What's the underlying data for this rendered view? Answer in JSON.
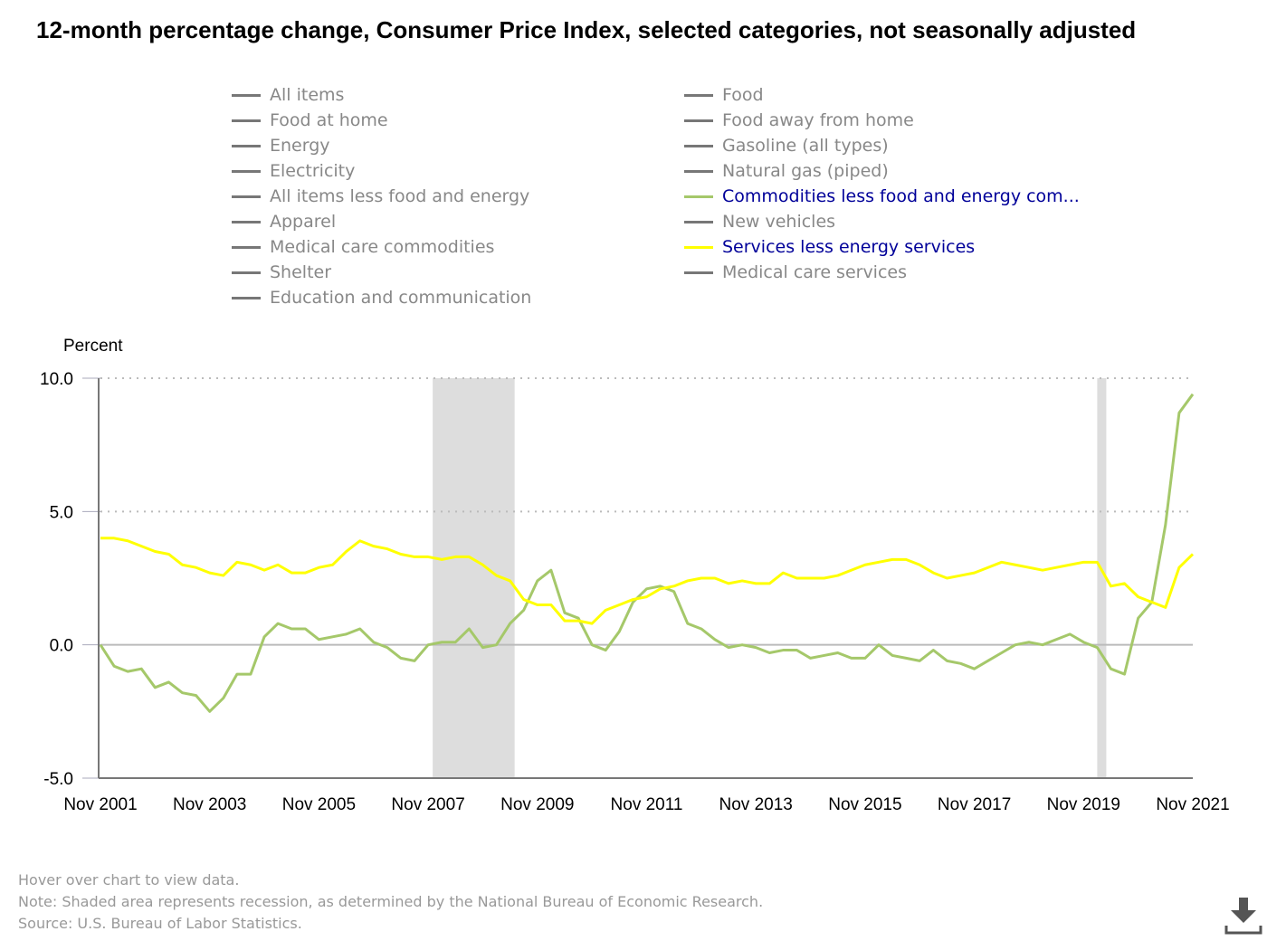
{
  "title": "12-month percentage change, Consumer Price Index, selected categories, not seasonally adjusted",
  "legend": [
    {
      "label": "All items",
      "active": false
    },
    {
      "label": "Food at home",
      "active": false
    },
    {
      "label": "Energy",
      "active": false
    },
    {
      "label": "Electricity",
      "active": false
    },
    {
      "label": "All items less food and energy",
      "active": false
    },
    {
      "label": "Apparel",
      "active": false
    },
    {
      "label": "Medical care commodities",
      "active": false
    },
    {
      "label": "Shelter",
      "active": false
    },
    {
      "label": "Education and communication",
      "active": false
    },
    {
      "label": "Food",
      "active": false
    },
    {
      "label": "Food away from home",
      "active": false
    },
    {
      "label": "Gasoline (all types)",
      "active": false
    },
    {
      "label": "Natural gas (piped)",
      "active": false
    },
    {
      "label": "Commodities less food and energy com...",
      "active": true,
      "color": "#a5c86a"
    },
    {
      "label": "New vehicles",
      "active": false
    },
    {
      "label": "Services less energy services",
      "active": true,
      "color": "#ffff00"
    },
    {
      "label": "Medical care services",
      "active": false
    }
  ],
  "chart_data": {
    "type": "line",
    "title": "12-month percentage change, Consumer Price Index, selected categories, not seasonally adjusted",
    "ylabel": "Percent",
    "xlabel": "",
    "ylim": [
      -5,
      10
    ],
    "yticks": [
      "10.0",
      "5.0",
      "0.0",
      "-5.0"
    ],
    "ytick_values": [
      10,
      5,
      0,
      -5
    ],
    "xticks": [
      "Nov 2001",
      "Nov 2003",
      "Nov 2005",
      "Nov 2007",
      "Nov 2009",
      "Nov 2011",
      "Nov 2013",
      "Nov 2015",
      "Nov 2017",
      "Nov 2019",
      "Nov 2021"
    ],
    "x_start": "2001-11",
    "x_months_total": 240,
    "step_months": 3,
    "grid": "horizontal dotted",
    "recessions": [
      {
        "start": "2007-12",
        "end": "2009-06"
      },
      {
        "start": "2020-02",
        "end": "2020-04"
      }
    ],
    "series": [
      {
        "name": "Commodities less food and energy commodities",
        "color": "#a5c86a",
        "values": [
          0.0,
          -0.8,
          -1.0,
          -0.9,
          -1.6,
          -1.4,
          -1.8,
          -1.9,
          -2.5,
          -2.0,
          -1.1,
          -1.1,
          0.3,
          0.8,
          0.6,
          0.6,
          0.2,
          0.3,
          0.4,
          0.6,
          0.1,
          -0.1,
          -0.5,
          -0.6,
          0.0,
          0.1,
          0.1,
          0.6,
          -0.1,
          0.0,
          0.8,
          1.3,
          2.4,
          2.8,
          1.2,
          1.0,
          0.0,
          -0.2,
          0.5,
          1.6,
          2.1,
          2.2,
          2.0,
          0.8,
          0.6,
          0.2,
          -0.1,
          0.0,
          -0.1,
          -0.3,
          -0.2,
          -0.2,
          -0.5,
          -0.4,
          -0.3,
          -0.5,
          -0.5,
          0.0,
          -0.4,
          -0.5,
          -0.6,
          -0.2,
          -0.6,
          -0.7,
          -0.9,
          -0.6,
          -0.3,
          0.0,
          0.1,
          0.0,
          0.2,
          0.4,
          0.1,
          -0.1,
          -0.9,
          -1.1,
          1.0,
          1.6,
          4.5,
          8.7,
          9.4
        ]
      },
      {
        "name": "Services less energy services",
        "color": "#ffff00",
        "values": [
          4.0,
          4.0,
          3.9,
          3.7,
          3.5,
          3.4,
          3.0,
          2.9,
          2.7,
          2.6,
          3.1,
          3.0,
          2.8,
          3.0,
          2.7,
          2.7,
          2.9,
          3.0,
          3.5,
          3.9,
          3.7,
          3.6,
          3.4,
          3.3,
          3.3,
          3.2,
          3.3,
          3.3,
          3.0,
          2.6,
          2.4,
          1.7,
          1.5,
          1.5,
          0.9,
          0.9,
          0.8,
          1.3,
          1.5,
          1.7,
          1.8,
          2.1,
          2.2,
          2.4,
          2.5,
          2.5,
          2.3,
          2.4,
          2.3,
          2.3,
          2.7,
          2.5,
          2.5,
          2.5,
          2.6,
          2.8,
          3.0,
          3.1,
          3.2,
          3.2,
          3.0,
          2.7,
          2.5,
          2.6,
          2.7,
          2.9,
          3.1,
          3.0,
          2.9,
          2.8,
          2.9,
          3.0,
          3.1,
          3.1,
          2.2,
          2.3,
          1.8,
          1.6,
          1.4,
          2.9,
          3.4
        ]
      }
    ]
  },
  "footer": {
    "hover": "Hover over chart to view data.",
    "note": "Note: Shaded area represents recession, as determined by the National Bureau of Economic Research.",
    "source": "Source: U.S. Bureau of Labor Statistics."
  }
}
